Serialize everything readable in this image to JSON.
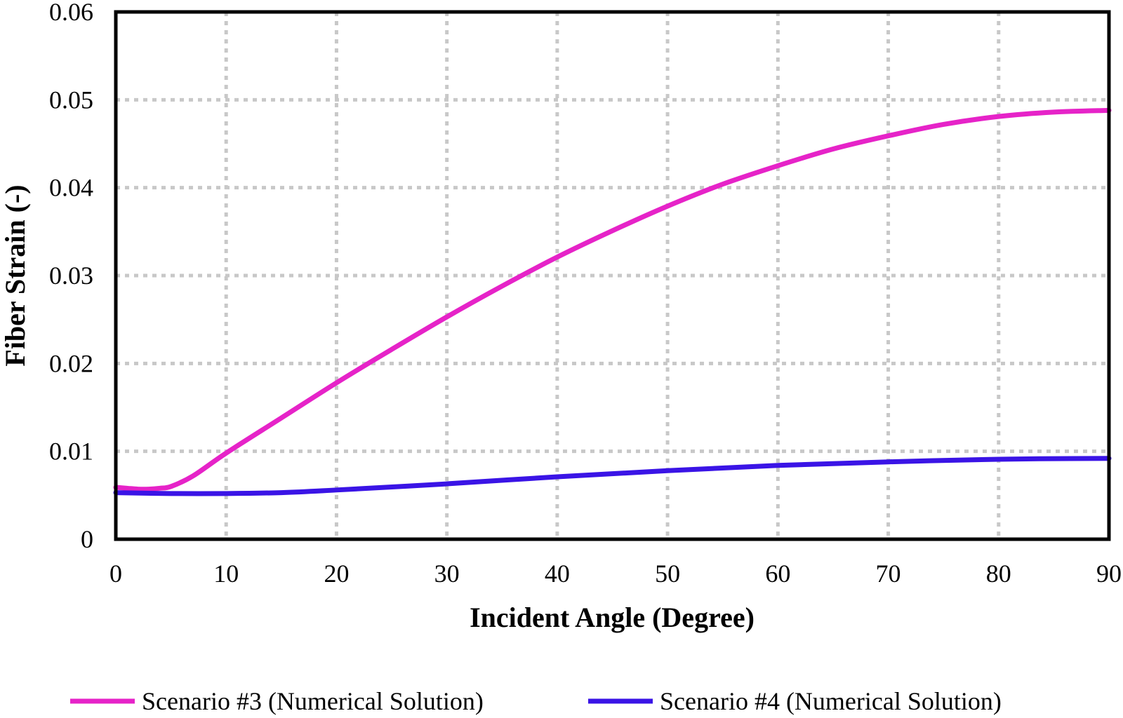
{
  "chart_data": {
    "type": "line",
    "xlabel": "Incident Angle (Degree)",
    "ylabel": "Fiber Strain (-)",
    "xlim": [
      0,
      90
    ],
    "ylim": [
      0,
      0.06
    ],
    "x_ticks": [
      "0",
      "10",
      "20",
      "30",
      "40",
      "50",
      "60",
      "70",
      "80",
      "90"
    ],
    "y_ticks": [
      "0",
      "0.01",
      "0.02",
      "0.03",
      "0.04",
      "0.05",
      "0.06"
    ],
    "grid": true,
    "legend_position": "bottom",
    "series": [
      {
        "name": "Scenario #3 (Numerical Solution)",
        "color": "#e623c8",
        "x": [
          0,
          1,
          2,
          3,
          4,
          5,
          7,
          10,
          15,
          20,
          25,
          30,
          35,
          40,
          45,
          50,
          55,
          60,
          65,
          70,
          75,
          80,
          85,
          90
        ],
        "y": [
          0.0059,
          0.0058,
          0.0057,
          0.0057,
          0.0058,
          0.006,
          0.0072,
          0.0098,
          0.0138,
          0.0178,
          0.0216,
          0.0253,
          0.0288,
          0.0321,
          0.0351,
          0.0379,
          0.0404,
          0.0425,
          0.0444,
          0.0459,
          0.0472,
          0.0481,
          0.0486,
          0.0488
        ]
      },
      {
        "name": "Scenario #4 (Numerical Solution)",
        "color": "#3a14e6",
        "x": [
          0,
          5,
          10,
          15,
          20,
          30,
          40,
          50,
          60,
          70,
          80,
          90
        ],
        "y": [
          0.0053,
          0.0052,
          0.0052,
          0.0053,
          0.0056,
          0.0063,
          0.0071,
          0.0078,
          0.0084,
          0.0088,
          0.0091,
          0.0092
        ]
      }
    ]
  }
}
